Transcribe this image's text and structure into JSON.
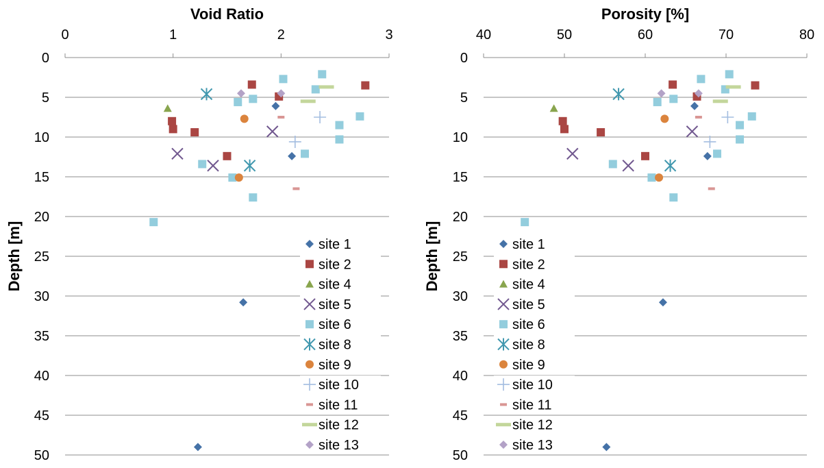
{
  "chart_data": [
    {
      "type": "scatter",
      "title": "Void Ratio",
      "xlabel": "",
      "ylabel": "Depth [m]",
      "xlim": [
        0,
        3
      ],
      "ylim": [
        0,
        50
      ],
      "y_inverted": true,
      "x_axis_position": "top",
      "x_ticks": [
        "0",
        "1",
        "2",
        "3"
      ],
      "x_tick_values": [
        0,
        1,
        2,
        3
      ],
      "y_ticks": [
        "0",
        "5",
        "10",
        "15",
        "20",
        "25",
        "30",
        "35",
        "40",
        "45",
        "50"
      ],
      "y_tick_values": [
        0,
        5,
        10,
        15,
        20,
        25,
        30,
        35,
        40,
        45,
        50
      ],
      "grid": "horizontal",
      "legend_position": "bottom-right",
      "series": [
        {
          "name": "site 1",
          "marker": "diamond",
          "color": "#4572A7",
          "points": [
            [
              1.95,
              6.1
            ],
            [
              2.1,
              12.4
            ],
            [
              1.65,
              30.8
            ],
            [
              1.23,
              49.0
            ]
          ]
        },
        {
          "name": "site 2",
          "marker": "square",
          "color": "#AA4643",
          "points": [
            [
              1.73,
              3.4
            ],
            [
              1.98,
              4.9
            ],
            [
              2.78,
              3.5
            ],
            [
              0.99,
              8.0
            ],
            [
              1.0,
              9.0
            ],
            [
              1.2,
              9.4
            ],
            [
              1.5,
              12.4
            ]
          ]
        },
        {
          "name": "site 4",
          "marker": "triangle",
          "color": "#89A54E",
          "points": [
            [
              0.95,
              6.4
            ]
          ]
        },
        {
          "name": "site 5",
          "marker": "x",
          "color": "#71588F",
          "points": [
            [
              1.92,
              9.3
            ],
            [
              1.04,
              12.1
            ],
            [
              1.37,
              13.6
            ]
          ]
        },
        {
          "name": "site 6",
          "marker": "square",
          "color": "#93CDDD",
          "points": [
            [
              2.38,
              2.1
            ],
            [
              2.02,
              2.7
            ],
            [
              2.32,
              4.0
            ],
            [
              1.6,
              5.6
            ],
            [
              1.74,
              5.2
            ],
            [
              2.73,
              7.4
            ],
            [
              2.54,
              8.5
            ],
            [
              2.54,
              10.3
            ],
            [
              2.22,
              12.1
            ],
            [
              1.27,
              13.4
            ],
            [
              1.55,
              15.1
            ],
            [
              1.74,
              17.6
            ],
            [
              0.82,
              20.7
            ]
          ]
        },
        {
          "name": "site 8",
          "marker": "star",
          "color": "#4198AF",
          "points": [
            [
              1.31,
              4.6
            ],
            [
              1.71,
              13.6
            ]
          ]
        },
        {
          "name": "site 9",
          "marker": "circle",
          "color": "#DB843D",
          "points": [
            [
              1.66,
              7.7
            ],
            [
              1.61,
              15.1
            ]
          ]
        },
        {
          "name": "site 10",
          "marker": "plus",
          "color": "#A4BDE0",
          "points": [
            [
              2.36,
              7.5
            ],
            [
              2.13,
              10.6
            ]
          ]
        },
        {
          "name": "site 11",
          "marker": "dash",
          "color": "#D99694",
          "points": [
            [
              2.0,
              7.5
            ],
            [
              2.14,
              16.5
            ]
          ]
        },
        {
          "name": "site 12",
          "marker": "bar",
          "color": "#C3D69B",
          "points": [
            [
              2.25,
              5.5
            ],
            [
              2.42,
              3.7
            ]
          ]
        },
        {
          "name": "site 13",
          "marker": "diamond",
          "color": "#B3A2C7",
          "points": [
            [
              1.63,
              4.5
            ],
            [
              2.0,
              4.5
            ]
          ]
        }
      ]
    },
    {
      "type": "scatter",
      "title": "Porosity [%]",
      "xlabel": "",
      "ylabel": "Depth [m]",
      "xlim": [
        40,
        80
      ],
      "ylim": [
        0,
        50
      ],
      "y_inverted": true,
      "x_axis_position": "top",
      "x_ticks": [
        "40",
        "50",
        "60",
        "70",
        "80"
      ],
      "x_tick_values": [
        40,
        50,
        60,
        70,
        80
      ],
      "y_ticks": [
        "0",
        "5",
        "10",
        "15",
        "20",
        "25",
        "30",
        "35",
        "40",
        "45",
        "50"
      ],
      "y_tick_values": [
        0,
        5,
        10,
        15,
        20,
        25,
        30,
        35,
        40,
        45,
        50
      ],
      "grid": "horizontal",
      "legend_position": "bottom-left",
      "series": [
        {
          "name": "site 1",
          "marker": "diamond",
          "color": "#4572A7",
          "points": [
            [
              66.1,
              6.1
            ],
            [
              67.7,
              12.4
            ],
            [
              62.2,
              30.8
            ],
            [
              55.2,
              49.0
            ]
          ]
        },
        {
          "name": "site 2",
          "marker": "square",
          "color": "#AA4643",
          "points": [
            [
              63.4,
              3.4
            ],
            [
              66.4,
              4.9
            ],
            [
              73.6,
              3.5
            ],
            [
              49.8,
              8.0
            ],
            [
              50.0,
              9.0
            ],
            [
              54.5,
              9.4
            ],
            [
              60.0,
              12.4
            ]
          ]
        },
        {
          "name": "site 4",
          "marker": "triangle",
          "color": "#89A54E",
          "points": [
            [
              48.7,
              6.4
            ]
          ]
        },
        {
          "name": "site 5",
          "marker": "x",
          "color": "#71588F",
          "points": [
            [
              65.8,
              9.3
            ],
            [
              51.0,
              12.1
            ],
            [
              57.9,
              13.6
            ]
          ]
        },
        {
          "name": "site 6",
          "marker": "square",
          "color": "#93CDDD",
          "points": [
            [
              70.4,
              2.1
            ],
            [
              66.9,
              2.7
            ],
            [
              69.9,
              4.0
            ],
            [
              61.5,
              5.6
            ],
            [
              63.5,
              5.2
            ],
            [
              73.2,
              7.4
            ],
            [
              71.7,
              8.5
            ],
            [
              71.7,
              10.3
            ],
            [
              68.9,
              12.1
            ],
            [
              56.0,
              13.4
            ],
            [
              60.8,
              15.1
            ],
            [
              63.5,
              17.6
            ],
            [
              45.1,
              20.7
            ]
          ]
        },
        {
          "name": "site 8",
          "marker": "star",
          "color": "#4198AF",
          "points": [
            [
              56.7,
              4.6
            ],
            [
              63.1,
              13.6
            ]
          ]
        },
        {
          "name": "site 9",
          "marker": "circle",
          "color": "#DB843D",
          "points": [
            [
              62.4,
              7.7
            ],
            [
              61.7,
              15.1
            ]
          ]
        },
        {
          "name": "site 10",
          "marker": "plus",
          "color": "#A4BDE0",
          "points": [
            [
              70.2,
              7.5
            ],
            [
              68.0,
              10.6
            ]
          ]
        },
        {
          "name": "site 11",
          "marker": "dash",
          "color": "#D99694",
          "points": [
            [
              66.6,
              7.5
            ],
            [
              68.2,
              16.5
            ]
          ]
        },
        {
          "name": "site 12",
          "marker": "bar",
          "color": "#C3D69B",
          "points": [
            [
              69.3,
              5.5
            ],
            [
              70.9,
              3.7
            ]
          ]
        },
        {
          "name": "site 13",
          "marker": "diamond",
          "color": "#B3A2C7",
          "points": [
            [
              62.0,
              4.5
            ],
            [
              66.6,
              4.5
            ]
          ]
        }
      ]
    }
  ]
}
